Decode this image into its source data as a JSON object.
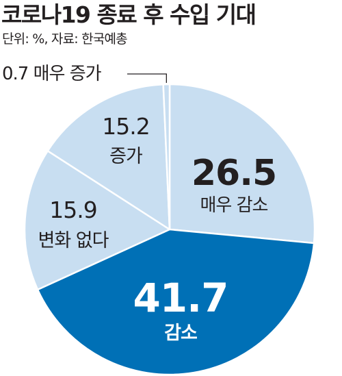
{
  "header": {
    "title": "코로나19 종료 후 수입 기대",
    "source": "단위: %, 자료: 한국예총"
  },
  "colors": {
    "light": "#c8def1",
    "dark": "#0070b6",
    "stroke": "#ffffff",
    "text": "#231f20",
    "text_on_dark": "#ffffff"
  },
  "chart_data": {
    "type": "pie",
    "title": "코로나19 종료 후 수입 기대",
    "unit": "%",
    "slices": [
      {
        "label": "매우 감소",
        "value": 26.5,
        "value_text": "26.5",
        "color": "#c8def1"
      },
      {
        "label": "감소",
        "value": 41.7,
        "value_text": "41.7",
        "color": "#0070b6"
      },
      {
        "label": "변화 없다",
        "value": 15.9,
        "value_text": "15.9",
        "color": "#c8def1"
      },
      {
        "label": "증가",
        "value": 15.2,
        "value_text": "15.2",
        "color": "#c8def1"
      },
      {
        "label": "매우 증가",
        "value": 0.7,
        "value_text": "0.7",
        "color": "#c8def1"
      }
    ]
  }
}
